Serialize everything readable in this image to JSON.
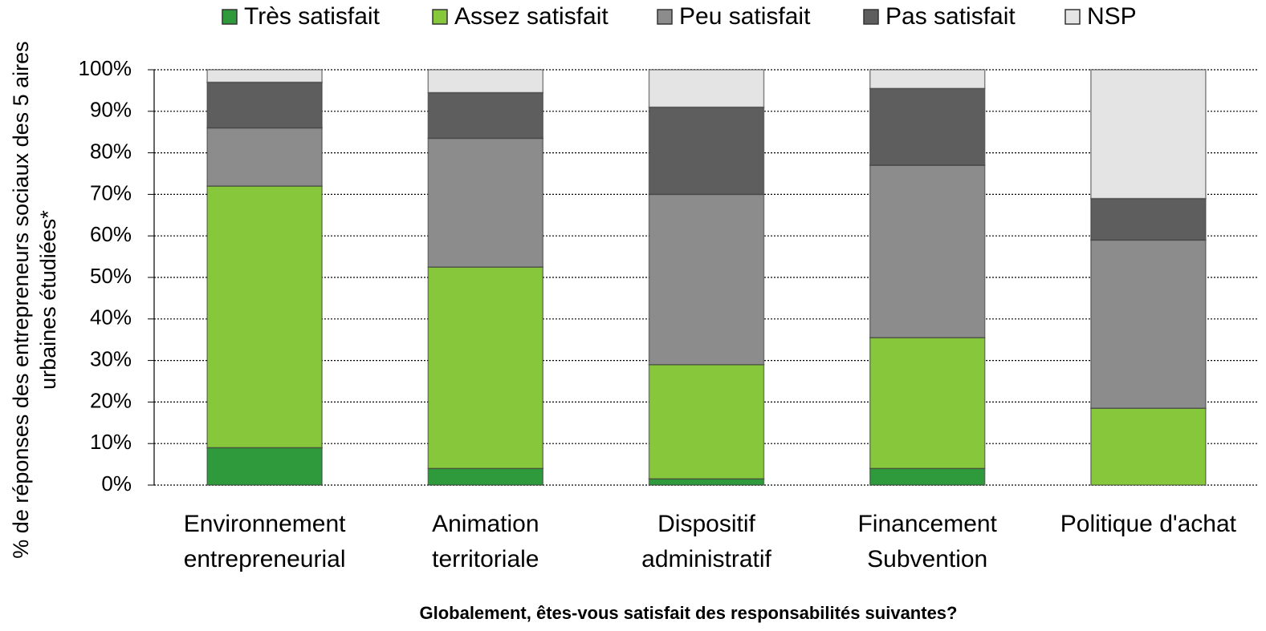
{
  "chart_data": {
    "type": "stacked_bar",
    "xlabel": "Globalement, êtes-vous satisfait des responsabilités suivantes?",
    "ylabel": "% de réponses des entrepreneurs sociaux des 5 aires urbaines étudiées*",
    "categories": [
      "Environnement entrepreneurial",
      "Animation territoriale",
      "Dispositif administratif",
      "Financement Subvention",
      "Politique d'achat"
    ],
    "series": [
      {
        "name": "Très satisfait",
        "color": "#2f9a3c",
        "values": [
          9,
          4,
          1.5,
          4,
          0
        ]
      },
      {
        "name": "Assez satisfait",
        "color": "#86c73c",
        "values": [
          63,
          48.5,
          27.5,
          31.5,
          18.5
        ]
      },
      {
        "name": "Peu satisfait",
        "color": "#8c8c8c",
        "values": [
          14,
          31,
          41,
          41.5,
          40.5
        ]
      },
      {
        "name": "Pas satisfait",
        "color": "#5e5e5e",
        "values": [
          11,
          11,
          21,
          18.5,
          10
        ]
      },
      {
        "name": "NSP",
        "color": "#e4e4e4",
        "values": [
          3,
          5.5,
          9,
          4.5,
          31
        ]
      }
    ],
    "ylim": [
      0,
      100
    ],
    "yticks": [
      {
        "value": 0,
        "label": "0%"
      },
      {
        "value": 10,
        "label": "10%"
      },
      {
        "value": 20,
        "label": "20%"
      },
      {
        "value": 30,
        "label": "30%"
      },
      {
        "value": 40,
        "label": "40%"
      },
      {
        "value": 50,
        "label": "50%"
      },
      {
        "value": 60,
        "label": "60%"
      },
      {
        "value": 70,
        "label": "70%"
      },
      {
        "value": 80,
        "label": "80%"
      },
      {
        "value": 90,
        "label": "90%"
      },
      {
        "value": 100,
        "label": "100%"
      }
    ],
    "grid": true,
    "legend": "top"
  }
}
